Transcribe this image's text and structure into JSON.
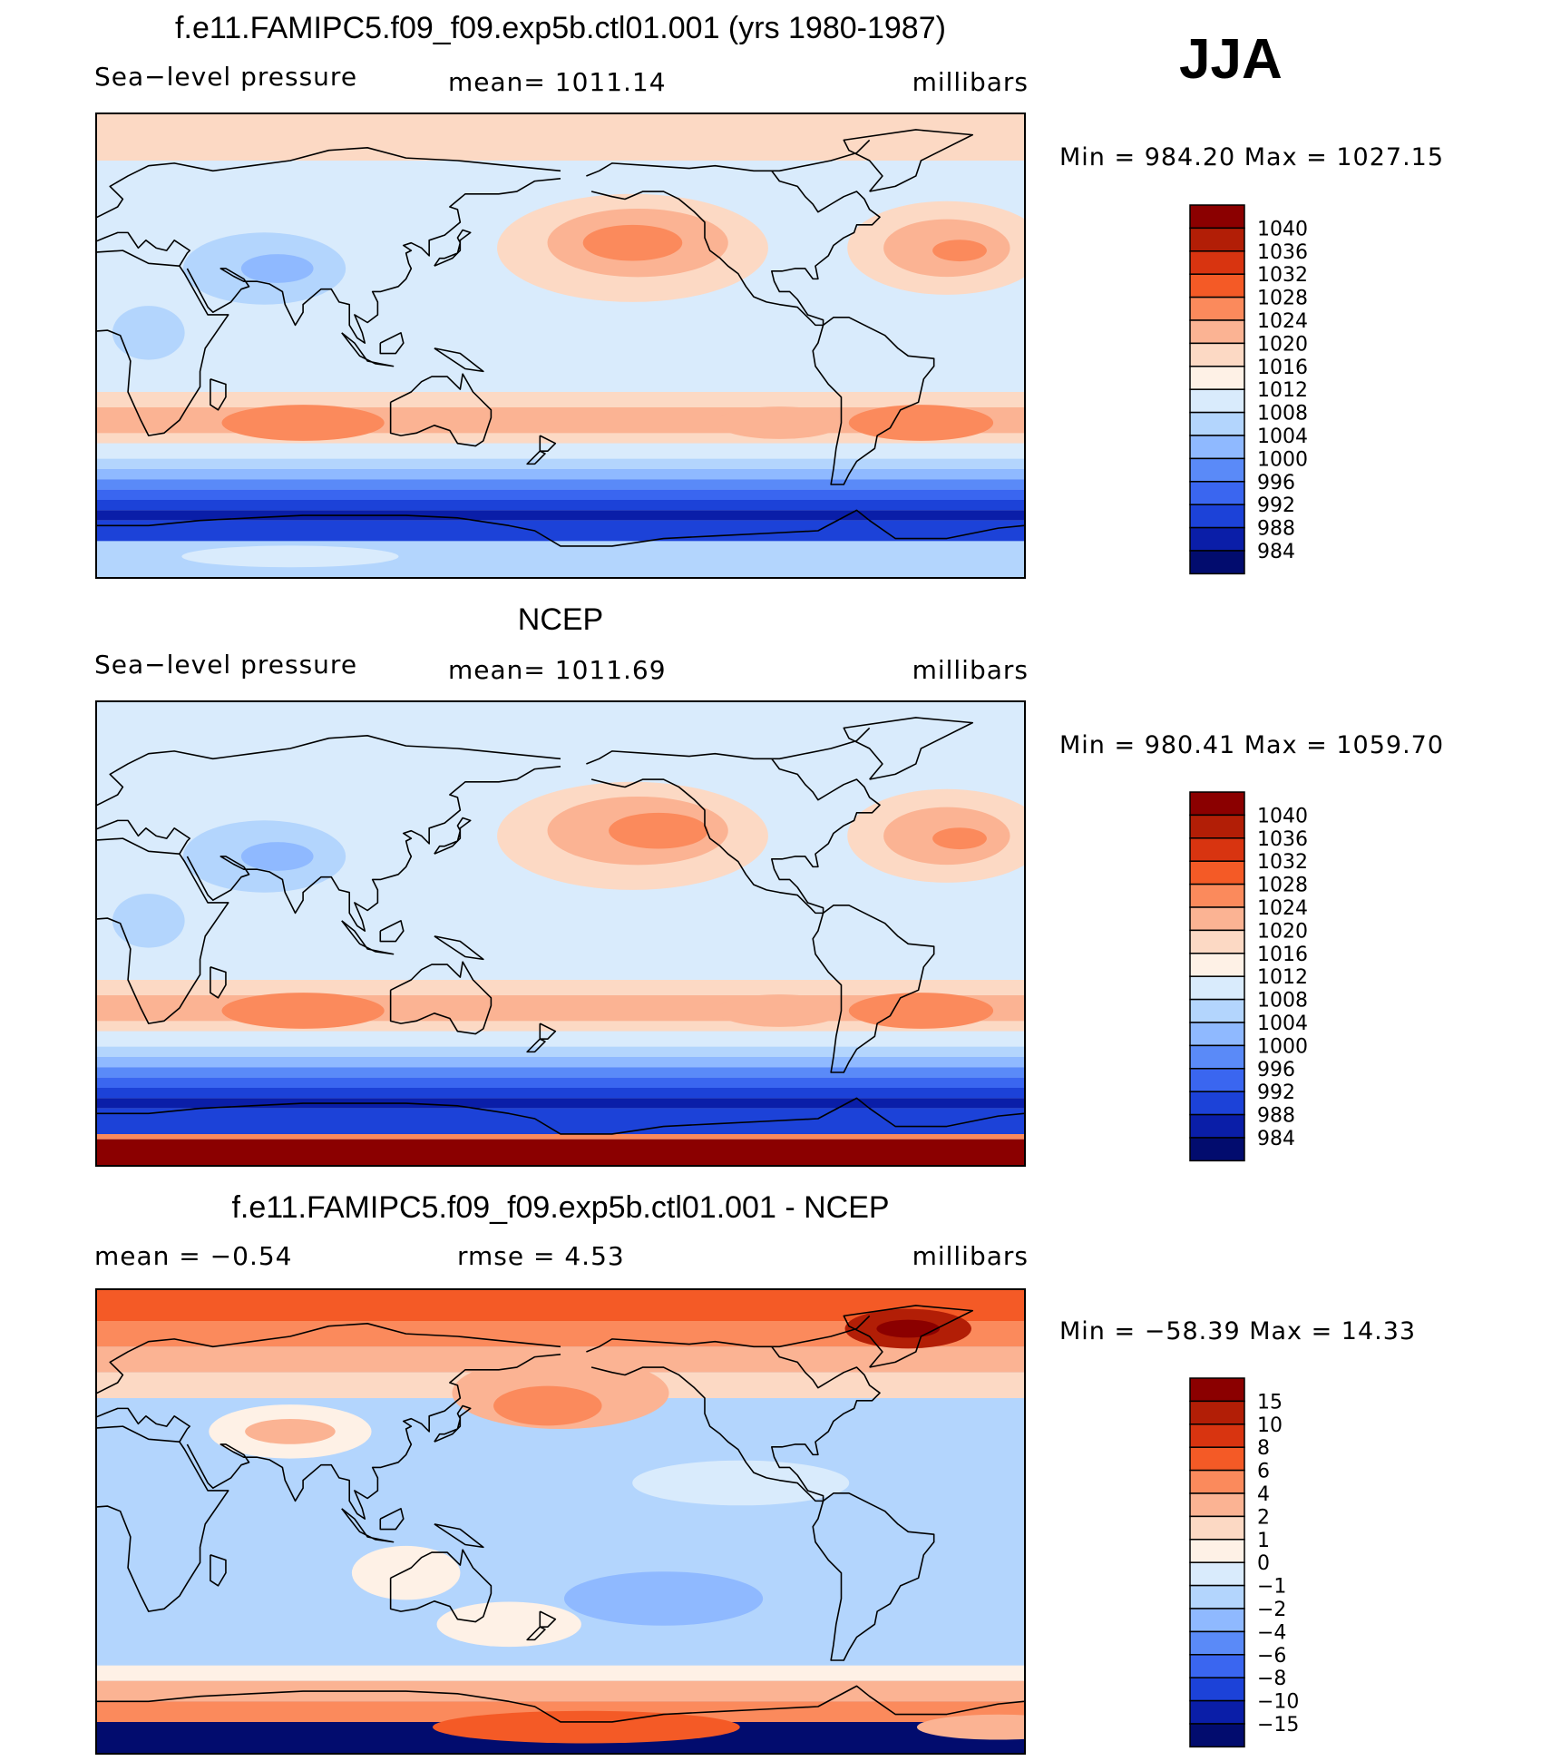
{
  "season": "JJA",
  "chart_data": [
    {
      "type": "heatmap",
      "title": "f.e11.FAMIPC5.f09_f09.exp5b.ctl01.001 (yrs 1980-1987)",
      "variable": "Sea−level pressure",
      "stat_left": "",
      "stat_center": "mean=  1011.14",
      "units": "millibars",
      "min_max": "Min  =  984.20  Max  =  1027.15",
      "colorbar": {
        "levels": [
          "1040",
          "1036",
          "1032",
          "1028",
          "1024",
          "1020",
          "1016",
          "1012",
          "1008",
          "1004",
          "1000",
          "996",
          "992",
          "988",
          "984"
        ],
        "colors": [
          "#8b0000",
          "#b21e06",
          "#d83410",
          "#f45a26",
          "#fb8a5c",
          "#fbb393",
          "#fcd9c4",
          "#fef1e6",
          "#d9ebfc",
          "#b3d5fd",
          "#8fb9ff",
          "#5a8af8",
          "#3a66f0",
          "#1c42d8",
          "#0a1ea8",
          "#020c6e"
        ]
      }
    },
    {
      "type": "heatmap",
      "title": "NCEP",
      "variable": "Sea−level pressure",
      "stat_left": "",
      "stat_center": "mean=  1011.69",
      "units": "millibars",
      "min_max": "Min  =  980.41  Max  =  1059.70",
      "colorbar": {
        "levels": [
          "1040",
          "1036",
          "1032",
          "1028",
          "1024",
          "1020",
          "1016",
          "1012",
          "1008",
          "1004",
          "1000",
          "996",
          "992",
          "988",
          "984"
        ],
        "colors": [
          "#8b0000",
          "#b21e06",
          "#d83410",
          "#f45a26",
          "#fb8a5c",
          "#fbb393",
          "#fcd9c4",
          "#fef1e6",
          "#d9ebfc",
          "#b3d5fd",
          "#8fb9ff",
          "#5a8af8",
          "#3a66f0",
          "#1c42d8",
          "#0a1ea8",
          "#020c6e"
        ]
      }
    },
    {
      "type": "heatmap",
      "title": "f.e11.FAMIPC5.f09_f09.exp5b.ctl01.001 - NCEP",
      "variable": "",
      "stat_left": "mean  =    −0.54",
      "stat_center": "rmse  =     4.53",
      "units": "millibars",
      "min_max": "Min  =  −58.39  Max  =    14.33",
      "colorbar": {
        "levels": [
          "15",
          "10",
          "8",
          "6",
          "4",
          "2",
          "1",
          "0",
          "−1",
          "−2",
          "−4",
          "−6",
          "−8",
          "−10",
          "−15"
        ],
        "colors": [
          "#8b0000",
          "#b21e06",
          "#d83410",
          "#f45a26",
          "#fb8a5c",
          "#fbb393",
          "#fcd9c4",
          "#fef1e6",
          "#d9ebfc",
          "#b3d5fd",
          "#8fb9ff",
          "#5a8af8",
          "#3a66f0",
          "#1c42d8",
          "#0a1ea8",
          "#020c6e"
        ]
      }
    }
  ]
}
